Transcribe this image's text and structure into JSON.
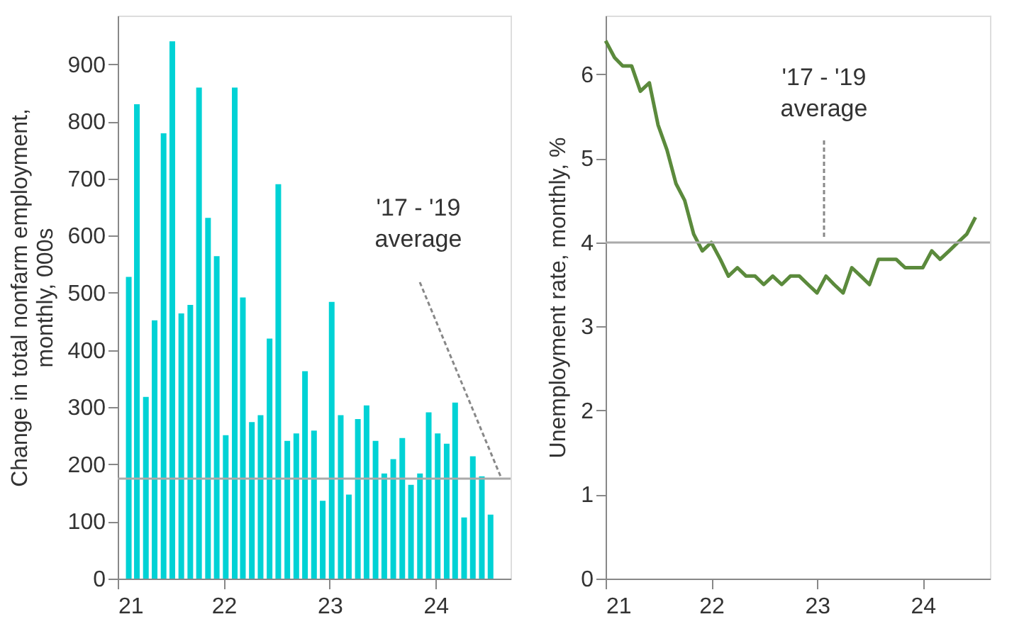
{
  "chart_data": [
    {
      "type": "bar",
      "ylabel": "Change in total nonfarm employment,\nmonthly, 000s",
      "x": [
        "2021-02-08",
        "2021-03-08",
        "2021-04-08",
        "2021-05-08",
        "2021-06-08",
        "2021-07-08",
        "2021-08-08",
        "2021-09-08",
        "2021-10-08",
        "2021-11-08",
        "2021-12-08",
        "2022-01-08",
        "2022-02-08",
        "2022-03-08",
        "2022-04-08",
        "2022-05-08",
        "2022-06-08",
        "2022-07-08",
        "2022-08-08",
        "2022-09-08",
        "2022-10-08",
        "2022-11-08",
        "2022-12-08",
        "2023-01-08",
        "2023-02-08",
        "2023-03-08",
        "2023-04-08",
        "2023-05-08",
        "2023-06-08",
        "2023-07-08",
        "2023-08-08",
        "2023-09-08",
        "2023-10-08",
        "2023-11-08",
        "2023-12-08",
        "2024-01-08",
        "2024-02-08",
        "2024-03-08",
        "2024-04-08",
        "2024-05-08",
        "2024-06-08",
        "2024-07-08"
      ],
      "values": [
        528,
        830,
        318,
        452,
        779,
        940,
        464,
        479,
        859,
        631,
        564,
        251,
        859,
        492,
        274,
        286,
        420,
        690,
        241,
        254,
        363,
        259,
        136,
        484,
        286,
        147,
        279,
        303,
        241,
        184,
        209,
        246,
        164,
        184,
        291,
        254,
        236,
        308,
        107,
        214,
        179,
        112
      ],
      "color": "#00d2d5",
      "xlim": [
        "2021-01-01",
        "2024-09-15"
      ],
      "xticks": [
        {
          "value": "2021-01-01",
          "label": "21"
        },
        {
          "value": "2022-01-01",
          "label": "22"
        },
        {
          "value": "2023-01-01",
          "label": "23"
        },
        {
          "value": "2024-01-01",
          "label": "24"
        }
      ],
      "ylim": [
        0,
        985
      ],
      "yticks": [
        0,
        100,
        200,
        300,
        400,
        500,
        600,
        700,
        800,
        900
      ],
      "legend": false,
      "ref_lines": [
        {
          "axis": "y",
          "value": 175,
          "label": "'17 - '19\naverage",
          "color": "#aaaaaa"
        }
      ],
      "grid": false
    },
    {
      "type": "line",
      "ylabel": "Unemployment rate, monthly, %",
      "x": [
        "2021-01",
        "2021-02",
        "2021-03",
        "2021-04",
        "2021-05",
        "2021-06",
        "2021-07",
        "2021-08",
        "2021-09",
        "2021-10",
        "2021-11",
        "2021-12",
        "2022-01",
        "2022-02",
        "2022-03",
        "2022-04",
        "2022-05",
        "2022-06",
        "2022-07",
        "2022-08",
        "2022-09",
        "2022-10",
        "2022-11",
        "2022-12",
        "2023-01",
        "2023-02",
        "2023-03",
        "2023-04",
        "2023-05",
        "2023-06",
        "2023-07",
        "2023-08",
        "2023-09",
        "2023-10",
        "2023-11",
        "2023-12",
        "2024-01",
        "2024-02",
        "2024-03",
        "2024-04",
        "2024-05",
        "2024-06",
        "2024-07"
      ],
      "values": [
        6.4,
        6.2,
        6.1,
        6.1,
        5.8,
        5.9,
        5.4,
        5.1,
        4.7,
        4.5,
        4.1,
        3.9,
        4.0,
        3.8,
        3.6,
        3.7,
        3.6,
        3.6,
        3.5,
        3.6,
        3.5,
        3.6,
        3.6,
        3.5,
        3.4,
        3.6,
        3.5,
        3.4,
        3.7,
        3.6,
        3.5,
        3.8,
        3.8,
        3.8,
        3.7,
        3.7,
        3.7,
        3.9,
        3.8,
        3.9,
        4.0,
        4.1,
        4.3
      ],
      "color": "#5b8a3c",
      "line_style": "solid",
      "marker": "none",
      "xlim": [
        "2021-01-01",
        "2024-08-20"
      ],
      "xticks": [
        {
          "value": "2021-01-01",
          "label": "21"
        },
        {
          "value": "2022-01-01",
          "label": "22"
        },
        {
          "value": "2023-01-01",
          "label": "23"
        },
        {
          "value": "2024-01-01",
          "label": "24"
        }
      ],
      "ylim": [
        0,
        6.7
      ],
      "yticks": [
        0,
        1,
        2,
        3,
        4,
        5,
        6
      ],
      "legend": false,
      "ref_lines": [
        {
          "axis": "y",
          "value": 4,
          "label": "'17 - '19\naverage",
          "color": "#aaaaaa"
        }
      ],
      "grid": false
    }
  ]
}
